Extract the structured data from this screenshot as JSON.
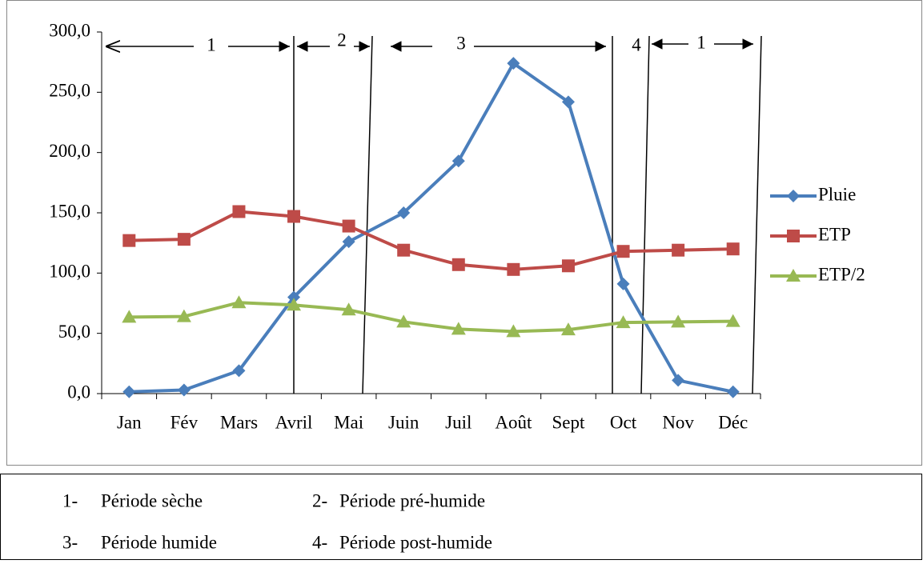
{
  "chart_data": {
    "type": "line",
    "categories": [
      "Jan",
      "Fév",
      "Mars",
      "Avril",
      "Mai",
      "Juin",
      "Juil",
      "Août",
      "Sept",
      "Oct",
      "Nov",
      "Déc"
    ],
    "series": [
      {
        "name": "Pluie",
        "color": "#4a7ebb",
        "marker": "diamond",
        "values": [
          1.5,
          3,
          19,
          80,
          126,
          150,
          193,
          274,
          242,
          91,
          11,
          1.5
        ]
      },
      {
        "name": "ETP",
        "color": "#be4b48",
        "marker": "square",
        "values": [
          127,
          128,
          151,
          147,
          139,
          119,
          107,
          103,
          106,
          118,
          119,
          120
        ]
      },
      {
        "name": "ETP/2",
        "color": "#98b954",
        "marker": "triangle",
        "values": [
          63.5,
          64,
          75.5,
          73.5,
          69.5,
          59.5,
          53.5,
          51.5,
          53,
          59,
          59.5,
          60
        ]
      }
    ],
    "ylim": [
      0,
      300
    ],
    "yticks": [
      {
        "value": 0,
        "label": "0,0"
      },
      {
        "value": 50,
        "label": "50,0"
      },
      {
        "value": 100,
        "label": "100,0"
      },
      {
        "value": 150,
        "label": "150,0"
      },
      {
        "value": 200,
        "label": "200,0"
      },
      {
        "value": 250,
        "label": "250,0"
      },
      {
        "value": 300,
        "label": "300,0"
      }
    ],
    "grid": false,
    "legend": "right",
    "annotations": [
      "1",
      "2",
      "3",
      "4",
      "1"
    ],
    "period_legend": [
      {
        "number": "1-",
        "text": "Période sèche"
      },
      {
        "number": "2-",
        "text": "Période pré-humide"
      },
      {
        "number": "3-",
        "text": "Période humide"
      },
      {
        "number": "4-",
        "text": "Période post-humide"
      }
    ]
  }
}
